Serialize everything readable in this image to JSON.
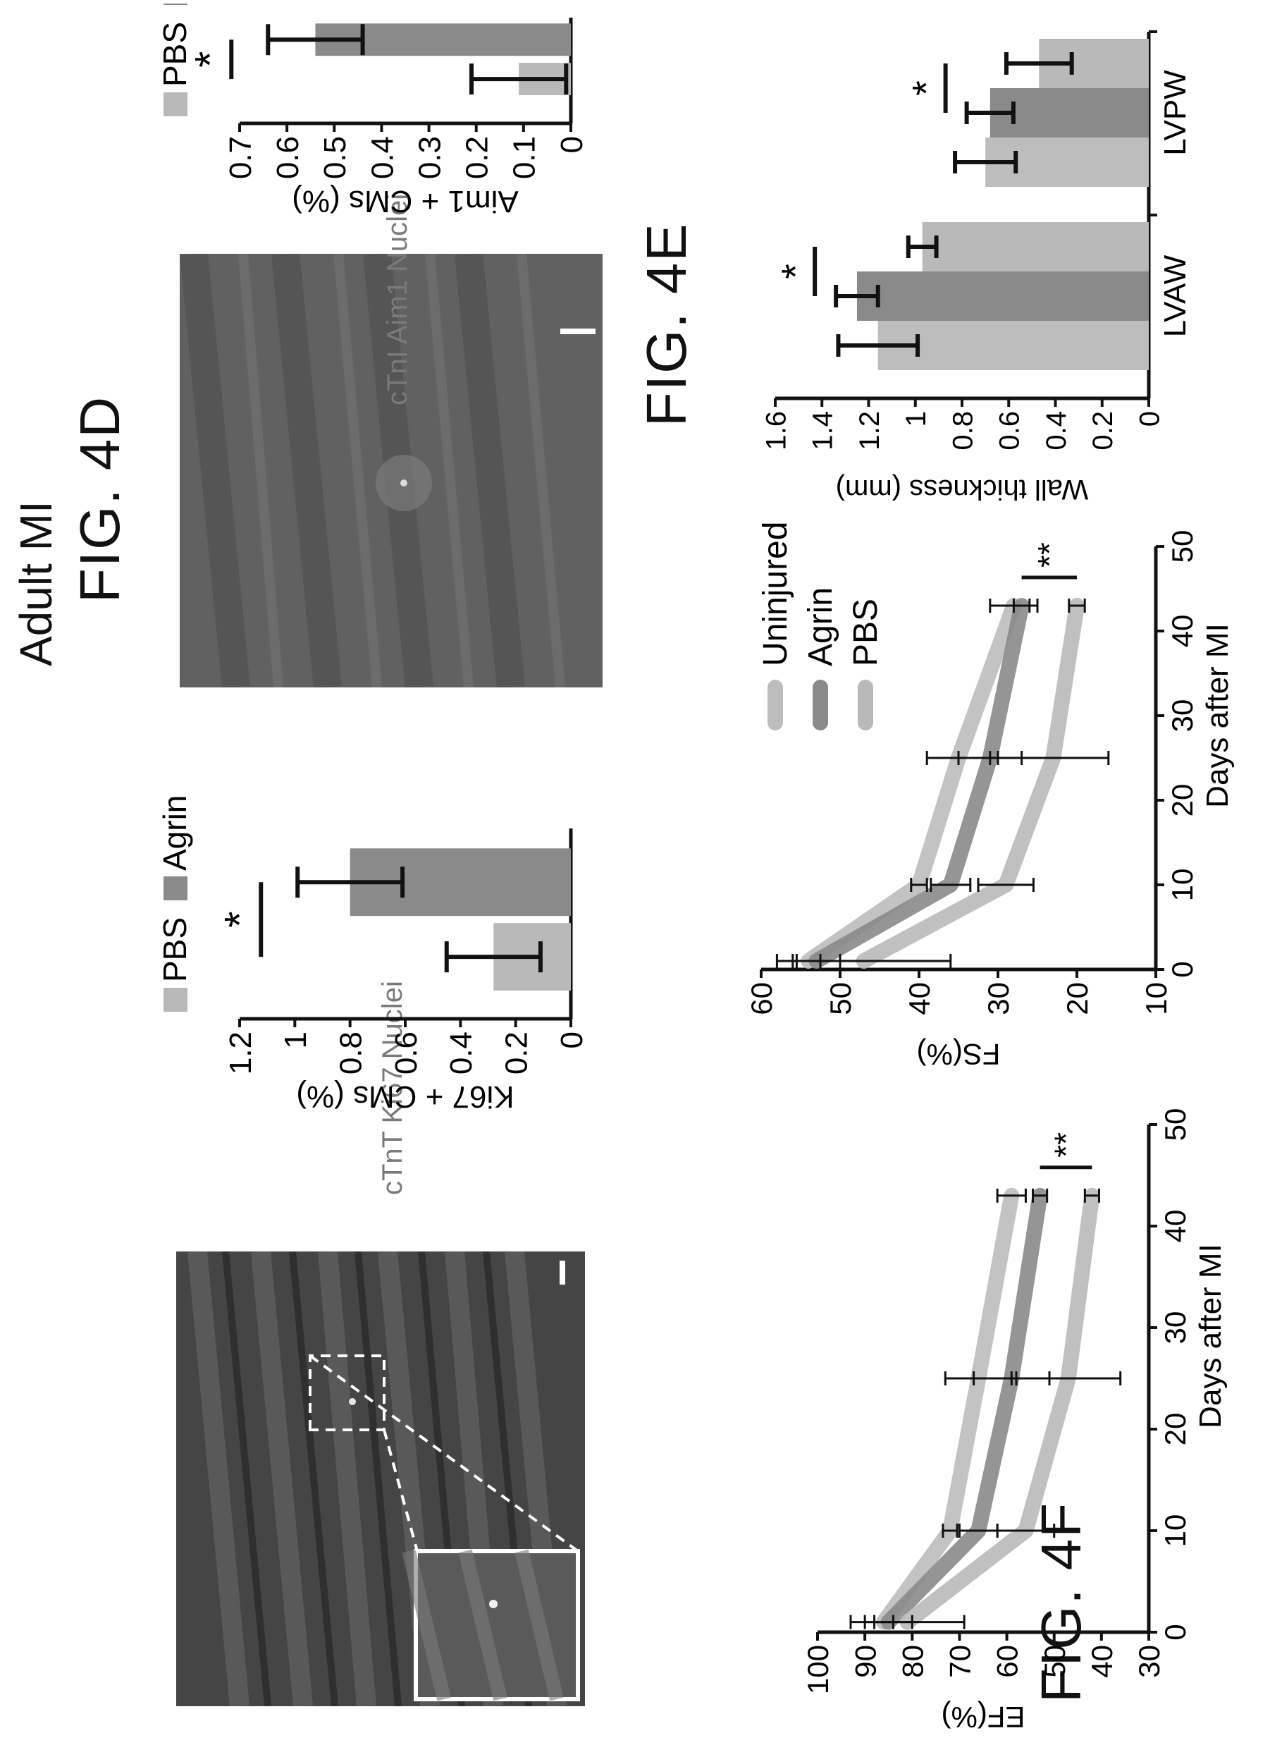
{
  "figure_labels": {
    "fig4d": "FIG. 4D",
    "fig4e": "FIG. 4E",
    "fig4f": "FIG. 4F"
  },
  "section_title": "Adult MI",
  "images": {
    "ki67": {
      "caption": "cTnT Ki67 Nuclei"
    },
    "aim1": {
      "caption": "cTnI Aim1 Nuclei"
    }
  },
  "colors": {
    "pbs": "#b9b9b9",
    "agrin": "#8a8a8a",
    "uninjured": "#bdbdbd",
    "axis": "#111111"
  },
  "chart_data": [
    {
      "id": "ki67",
      "type": "bar",
      "categories": [
        "PBS",
        "Agrin"
      ],
      "values": [
        0.28,
        0.8
      ],
      "errors": [
        0.17,
        0.19
      ],
      "ylabel": "Ki67 + CMs (%)",
      "ylim": [
        0,
        1.2
      ],
      "yticks": [
        "0",
        "0.2",
        "0.4",
        "0.6",
        "0.8",
        "1",
        "1.2"
      ],
      "legend": [
        "PBS",
        "Agrin"
      ],
      "annotation": "*"
    },
    {
      "id": "aim1",
      "type": "bar",
      "categories": [
        "PBS",
        "Agrin"
      ],
      "values": [
        0.11,
        0.54
      ],
      "errors": [
        0.1,
        0.1
      ],
      "ylabel": "Aim1 + CMs (%)",
      "ylim": [
        0,
        0.7
      ],
      "yticks": [
        "0",
        "0.1",
        "0.2",
        "0.3",
        "0.4",
        "0.5",
        "0.6",
        "0.7"
      ],
      "legend": [
        "PBS",
        "Agrin"
      ],
      "annotation": "*"
    },
    {
      "id": "ef",
      "type": "line",
      "xlabel": "Days after MI",
      "ylabel": "EF(%)",
      "xlim": [
        0,
        50
      ],
      "ylim": [
        30,
        100
      ],
      "xticks": [
        "0",
        "10",
        "20",
        "30",
        "40",
        "50"
      ],
      "yticks": [
        "30",
        "40",
        "50",
        "60",
        "70",
        "80",
        "90",
        "100"
      ],
      "x": [
        1,
        10,
        25,
        43
      ],
      "series": [
        {
          "name": "Uninjured",
          "values": [
            86,
            72,
            66,
            59
          ],
          "errors": [
            2,
            1.5,
            7,
            3
          ]
        },
        {
          "name": "Agrin",
          "values": [
            85,
            66,
            59,
            53
          ],
          "errors": [
            5,
            4,
            8,
            1.5
          ]
        },
        {
          "name": "PBS",
          "values": [
            81,
            56,
            47,
            42
          ],
          "errors": [
            12,
            6,
            11,
            1.5
          ]
        }
      ],
      "annotation": "**"
    },
    {
      "id": "fs",
      "type": "line",
      "xlabel": "Days after MI",
      "ylabel": "FS(%)",
      "xlim": [
        0,
        50
      ],
      "ylim": [
        10,
        60
      ],
      "xticks": [
        "0",
        "10",
        "20",
        "30",
        "40",
        "50"
      ],
      "yticks": [
        "10",
        "20",
        "30",
        "40",
        "50",
        "60"
      ],
      "x": [
        1,
        10,
        25,
        43
      ],
      "series": [
        {
          "name": "Uninjured",
          "values": [
            54,
            40,
            35,
            28
          ],
          "errors": [
            1.5,
            1,
            4,
            3
          ]
        },
        {
          "name": "Agrin",
          "values": [
            53,
            36,
            31,
            27
          ],
          "errors": [
            3,
            2.5,
            4,
            1
          ]
        },
        {
          "name": "PBS",
          "values": [
            47,
            29,
            23,
            20
          ],
          "errors": [
            11,
            3.5,
            7,
            1
          ]
        }
      ],
      "legend": [
        "Uninjured",
        "Agrin",
        "PBS"
      ],
      "annotation": "**"
    },
    {
      "id": "wall",
      "type": "bar",
      "categories": [
        "LVAW",
        "LVPW"
      ],
      "series": [
        {
          "name": "Uninjured",
          "values": [
            1.16,
            0.7
          ],
          "errors": [
            0.17,
            0.13
          ]
        },
        {
          "name": "Agrin",
          "values": [
            1.25,
            0.68
          ],
          "errors": [
            0.09,
            0.1
          ]
        },
        {
          "name": "PBS",
          "values": [
            0.97,
            0.47
          ],
          "errors": [
            0.06,
            0.14
          ]
        }
      ],
      "ylabel": "Wall thickness (mm)",
      "ylim": [
        0,
        1.6
      ],
      "yticks": [
        "0",
        "0.2",
        "0.4",
        "0.6",
        "0.8",
        "1",
        "1.2",
        "1.4",
        "1.6"
      ],
      "annotations": [
        "*",
        "*"
      ]
    }
  ]
}
